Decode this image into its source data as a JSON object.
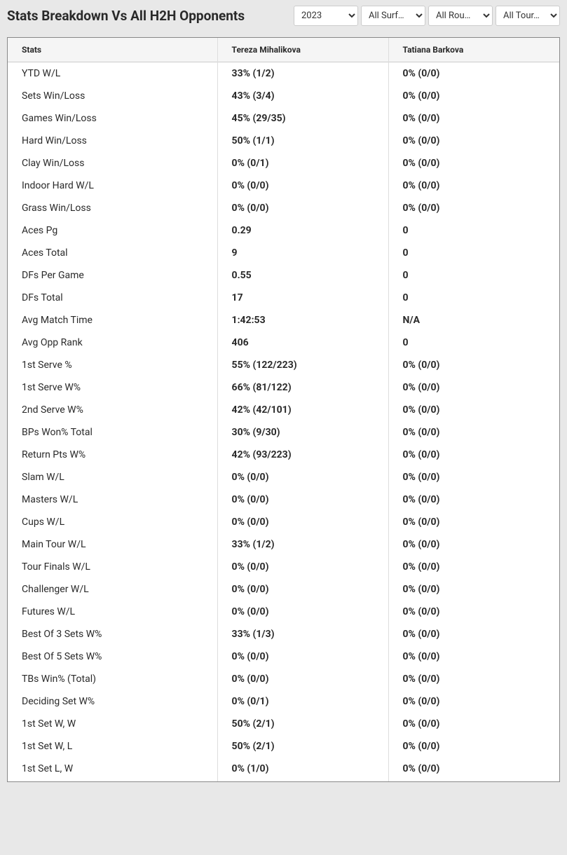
{
  "header": {
    "title": "Stats Breakdown Vs All H2H Opponents"
  },
  "filters": {
    "year": {
      "selected": "2023"
    },
    "surface": {
      "selected": "All Surf…"
    },
    "round": {
      "selected": "All Rou…"
    },
    "tour": {
      "selected": "All Tour…"
    }
  },
  "table": {
    "headers": {
      "stats": "Stats",
      "player1": "Tereza Mihalikova",
      "player2": "Tatiana Barkova"
    },
    "rows": [
      {
        "label": "YTD W/L",
        "p1": "33% (1/2)",
        "p2": "0% (0/0)"
      },
      {
        "label": "Sets Win/Loss",
        "p1": "43% (3/4)",
        "p2": "0% (0/0)"
      },
      {
        "label": "Games Win/Loss",
        "p1": "45% (29/35)",
        "p2": "0% (0/0)"
      },
      {
        "label": "Hard Win/Loss",
        "p1": "50% (1/1)",
        "p2": "0% (0/0)"
      },
      {
        "label": "Clay Win/Loss",
        "p1": "0% (0/1)",
        "p2": "0% (0/0)"
      },
      {
        "label": "Indoor Hard W/L",
        "p1": "0% (0/0)",
        "p2": "0% (0/0)"
      },
      {
        "label": "Grass Win/Loss",
        "p1": "0% (0/0)",
        "p2": "0% (0/0)"
      },
      {
        "label": "Aces Pg",
        "p1": "0.29",
        "p2": "0"
      },
      {
        "label": "Aces Total",
        "p1": "9",
        "p2": "0"
      },
      {
        "label": "DFs Per Game",
        "p1": "0.55",
        "p2": "0"
      },
      {
        "label": "DFs Total",
        "p1": "17",
        "p2": "0"
      },
      {
        "label": "Avg Match Time",
        "p1": "1:42:53",
        "p2": "N/A"
      },
      {
        "label": "Avg Opp Rank",
        "p1": "406",
        "p2": "0"
      },
      {
        "label": "1st Serve %",
        "p1": "55% (122/223)",
        "p2": "0% (0/0)"
      },
      {
        "label": "1st Serve W%",
        "p1": "66% (81/122)",
        "p2": "0% (0/0)"
      },
      {
        "label": "2nd Serve W%",
        "p1": "42% (42/101)",
        "p2": "0% (0/0)"
      },
      {
        "label": "BPs Won% Total",
        "p1": "30% (9/30)",
        "p2": "0% (0/0)"
      },
      {
        "label": "Return Pts W%",
        "p1": "42% (93/223)",
        "p2": "0% (0/0)"
      },
      {
        "label": "Slam W/L",
        "p1": "0% (0/0)",
        "p2": "0% (0/0)"
      },
      {
        "label": "Masters W/L",
        "p1": "0% (0/0)",
        "p2": "0% (0/0)"
      },
      {
        "label": "Cups W/L",
        "p1": "0% (0/0)",
        "p2": "0% (0/0)"
      },
      {
        "label": "Main Tour W/L",
        "p1": "33% (1/2)",
        "p2": "0% (0/0)"
      },
      {
        "label": "Tour Finals W/L",
        "p1": "0% (0/0)",
        "p2": "0% (0/0)"
      },
      {
        "label": "Challenger W/L",
        "p1": "0% (0/0)",
        "p2": "0% (0/0)"
      },
      {
        "label": "Futures W/L",
        "p1": "0% (0/0)",
        "p2": "0% (0/0)"
      },
      {
        "label": "Best Of 3 Sets W%",
        "p1": "33% (1/3)",
        "p2": "0% (0/0)"
      },
      {
        "label": "Best Of 5 Sets W%",
        "p1": "0% (0/0)",
        "p2": "0% (0/0)"
      },
      {
        "label": "TBs Win% (Total)",
        "p1": "0% (0/0)",
        "p2": "0% (0/0)"
      },
      {
        "label": "Deciding Set W%",
        "p1": "0% (0/1)",
        "p2": "0% (0/0)"
      },
      {
        "label": "1st Set W, W",
        "p1": "50% (2/1)",
        "p2": "0% (0/0)"
      },
      {
        "label": "1st Set W, L",
        "p1": "50% (2/1)",
        "p2": "0% (0/0)"
      },
      {
        "label": "1st Set L, W",
        "p1": "0% (1/0)",
        "p2": "0% (0/0)"
      }
    ]
  }
}
